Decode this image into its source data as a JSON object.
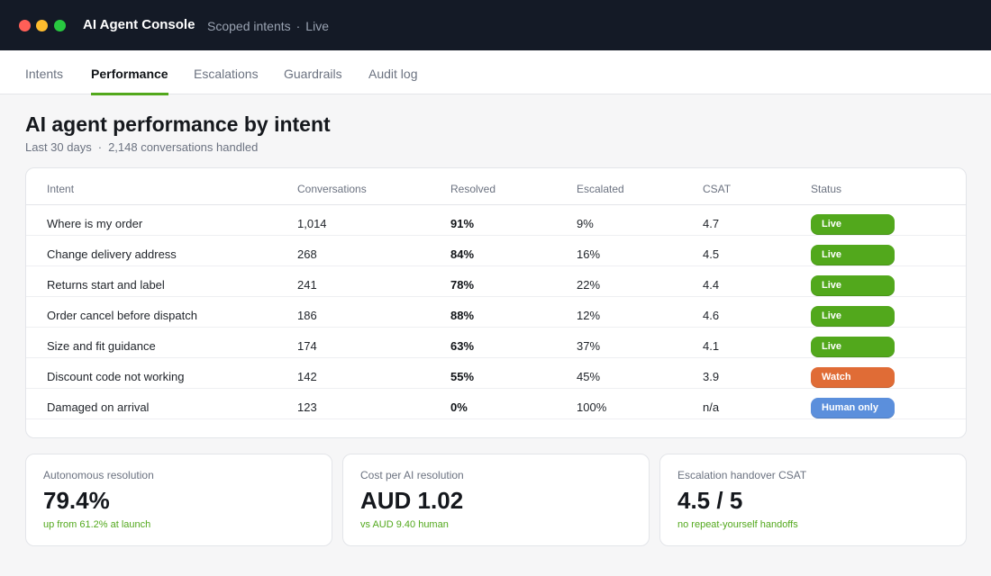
{
  "window": {
    "title": "AI Agent Console",
    "subtitle": "Scoped intents",
    "subtitle_separator": "·",
    "mode": "Live"
  },
  "tabs": [
    {
      "label": "Intents",
      "active": false
    },
    {
      "label": "Performance",
      "active": true
    },
    {
      "label": "Escalations",
      "active": false
    },
    {
      "label": "Guardrails",
      "active": false
    },
    {
      "label": "Audit log",
      "active": false
    }
  ],
  "page": {
    "title": "AI agent performance by intent",
    "period": "Last 30 days",
    "separator": "·",
    "summary": "2,148 conversations handled"
  },
  "table": {
    "headers": [
      "Intent",
      "Conversations",
      "Resolved",
      "Escalated",
      "CSAT",
      "Status"
    ],
    "rows": [
      {
        "intent": "Where is my order",
        "conversations": "1,014",
        "resolved": "91%",
        "escalated": "9%",
        "csat": "4.7",
        "status": "Live",
        "status_color": "#52a81c"
      },
      {
        "intent": "Change delivery address",
        "conversations": "268",
        "resolved": "84%",
        "escalated": "16%",
        "csat": "4.5",
        "status": "Live",
        "status_color": "#52a81c"
      },
      {
        "intent": "Returns start and label",
        "conversations": "241",
        "resolved": "78%",
        "escalated": "22%",
        "csat": "4.4",
        "status": "Live",
        "status_color": "#52a81c"
      },
      {
        "intent": "Order cancel before dispatch",
        "conversations": "186",
        "resolved": "88%",
        "escalated": "12%",
        "csat": "4.6",
        "status": "Live",
        "status_color": "#52a81c"
      },
      {
        "intent": "Size and fit guidance",
        "conversations": "174",
        "resolved": "63%",
        "escalated": "37%",
        "csat": "4.1",
        "status": "Live",
        "status_color": "#52a81c"
      },
      {
        "intent": "Discount code not working",
        "conversations": "142",
        "resolved": "55%",
        "escalated": "45%",
        "csat": "3.9",
        "status": "Watch",
        "status_color": "#e06c36"
      },
      {
        "intent": "Damaged on arrival",
        "conversations": "123",
        "resolved": "0%",
        "escalated": "100%",
        "csat": "n/a",
        "status": "Human only",
        "status_color": "#5b8fdc"
      }
    ]
  },
  "stats": [
    {
      "label": "Autonomous resolution",
      "value": "79.4%",
      "note": "up from 61.2% at launch"
    },
    {
      "label": "Cost per AI resolution",
      "value": "AUD 1.02",
      "note": "vs AUD 9.40 human"
    },
    {
      "label": "Escalation handover CSAT",
      "value": "4.5 / 5",
      "note": "no repeat-yourself handoffs"
    }
  ],
  "colors": {
    "titlebar": "#141a26",
    "accent": "#52a81c",
    "live": "#52a81c",
    "watch": "#e06c36",
    "human_only": "#5b8fdc",
    "window_close": "#ff5f57",
    "window_minimize": "#febc2e",
    "window_zoom": "#28c840"
  }
}
